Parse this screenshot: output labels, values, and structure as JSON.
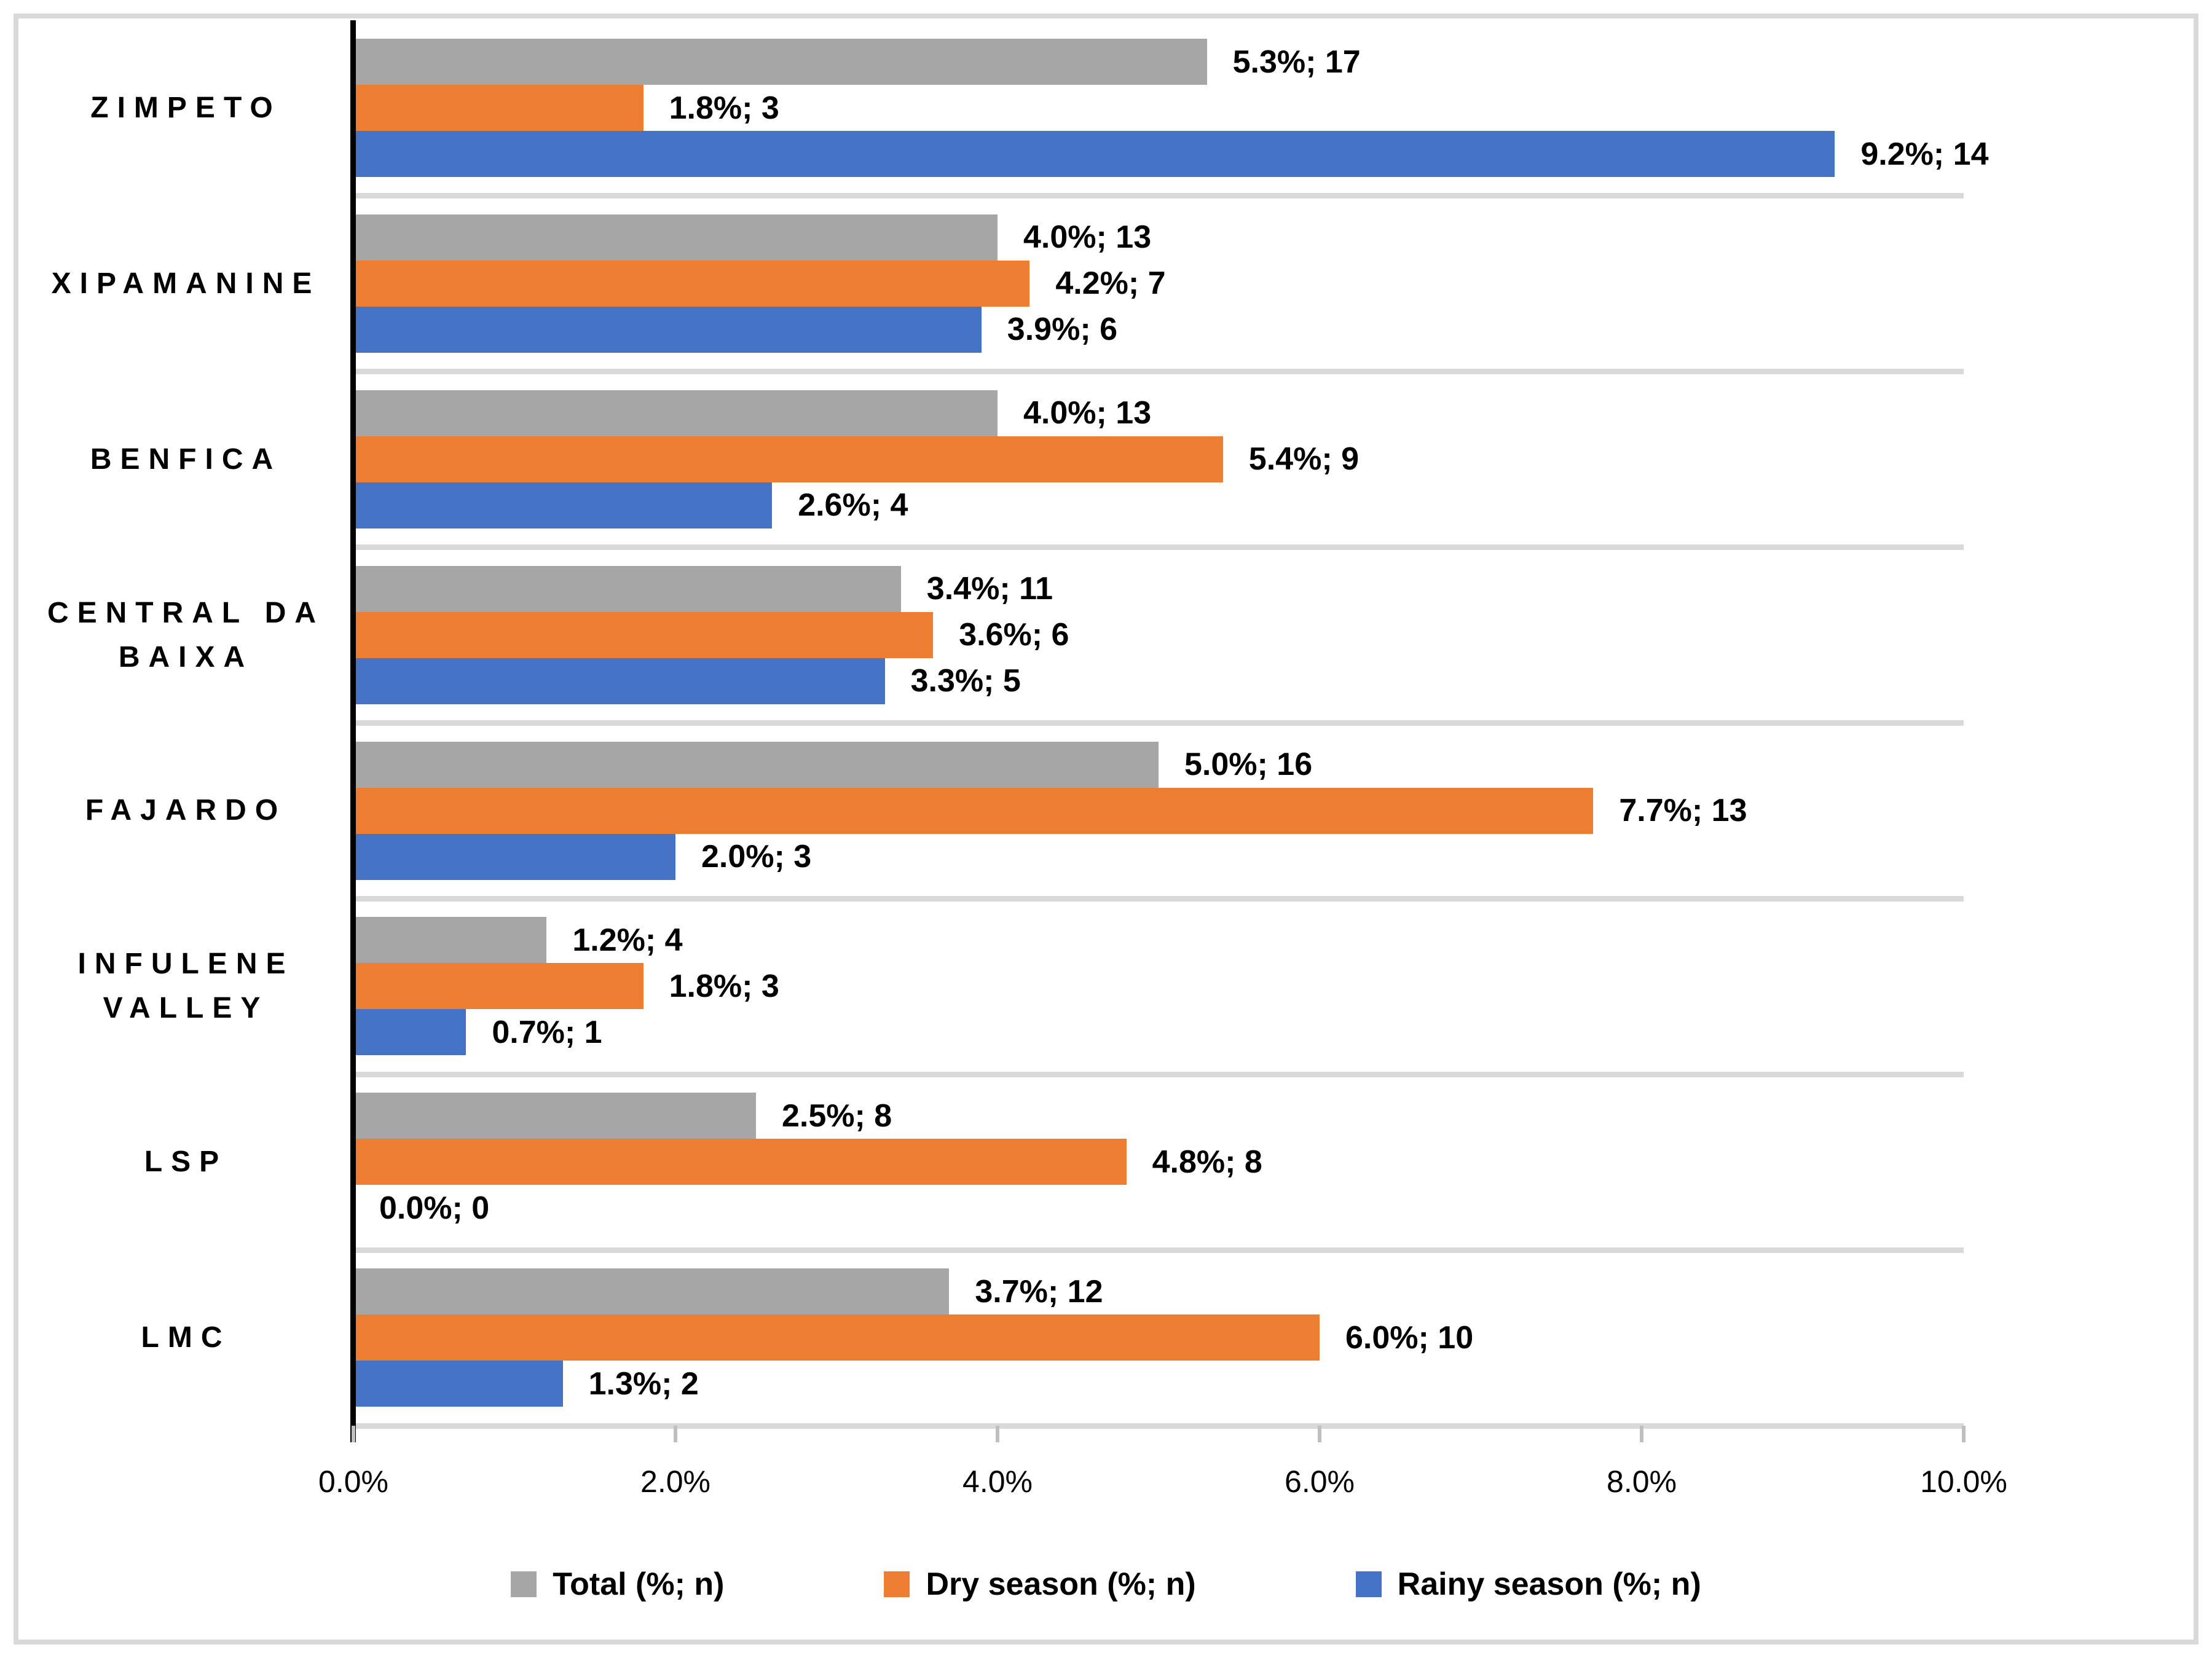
{
  "chart_data": {
    "type": "bar",
    "orientation": "horizontal",
    "title": "",
    "xlabel": "",
    "ylabel": "",
    "x_axis": {
      "min": 0,
      "max": 10,
      "tick_labels": [
        "0.0%",
        "2.0%",
        "4.0%",
        "6.0%",
        "8.0%",
        "10.0%"
      ],
      "grid": false
    },
    "categories": [
      "ZIMPETO",
      "XIPAMANINE",
      "BENFICA",
      "CENTRAL DA BAIXA",
      "FAJARDO",
      "INFULENE VALLEY",
      "LSP",
      "LMC"
    ],
    "category_lines": [
      [
        "ZIMPETO"
      ],
      [
        "XIPAMANINE"
      ],
      [
        "BENFICA"
      ],
      [
        "CENTRAL DA",
        "BAIXA"
      ],
      [
        "FAJARDO"
      ],
      [
        "INFULENE",
        "VALLEY"
      ],
      [
        "LSP"
      ],
      [
        "LMC"
      ]
    ],
    "series": [
      {
        "name": "Total (%; n)",
        "color": "#A6A6A6",
        "values": [
          5.3,
          4.0,
          4.0,
          3.4,
          5.0,
          1.2,
          2.5,
          3.7
        ],
        "counts": [
          17,
          13,
          13,
          11,
          16,
          4,
          8,
          12
        ],
        "labels": [
          "5.3%; 17",
          "4.0%; 13",
          "4.0%; 13",
          "3.4%; 11",
          "5.0%; 16",
          "1.2%; 4",
          "2.5%; 8",
          "3.7%; 12"
        ]
      },
      {
        "name": "Dry season (%; n)",
        "color": "#ED7D31",
        "values": [
          1.8,
          4.2,
          5.4,
          3.6,
          7.7,
          1.8,
          4.8,
          6.0
        ],
        "counts": [
          3,
          7,
          9,
          6,
          13,
          3,
          8,
          10
        ],
        "labels": [
          "1.8%; 3",
          "4.2%; 7",
          "5.4%; 9",
          "3.6%; 6",
          "7.7%; 13",
          "1.8%; 3",
          "4.8%; 8",
          "6.0%; 10"
        ]
      },
      {
        "name": "Rainy season (%; n)",
        "color": "#4472C4",
        "values": [
          9.2,
          3.9,
          2.6,
          3.3,
          2.0,
          0.7,
          0.0,
          1.3
        ],
        "counts": [
          14,
          6,
          4,
          5,
          3,
          1,
          0,
          2
        ],
        "labels": [
          "9.2%; 14",
          "3.9%; 6",
          "2.6%; 4",
          "3.3%; 5",
          "2.0%; 3",
          "0.7%; 1",
          "0.0%; 0",
          "1.3%; 2"
        ]
      }
    ],
    "legend": {
      "position": "bottom",
      "entries": [
        {
          "label": "Total (%; n)",
          "color": "#A6A6A6"
        },
        {
          "label": "Dry season (%; n)",
          "color": "#ED7D31"
        },
        {
          "label": "Rainy season (%; n)",
          "color": "#4472C4"
        }
      ]
    }
  },
  "colors": {
    "background": "#FFFFFF",
    "border": "#D9D9D9",
    "separator": "#D9D9D9",
    "category_axis": "#000000",
    "tick": "#BFBFBF"
  }
}
